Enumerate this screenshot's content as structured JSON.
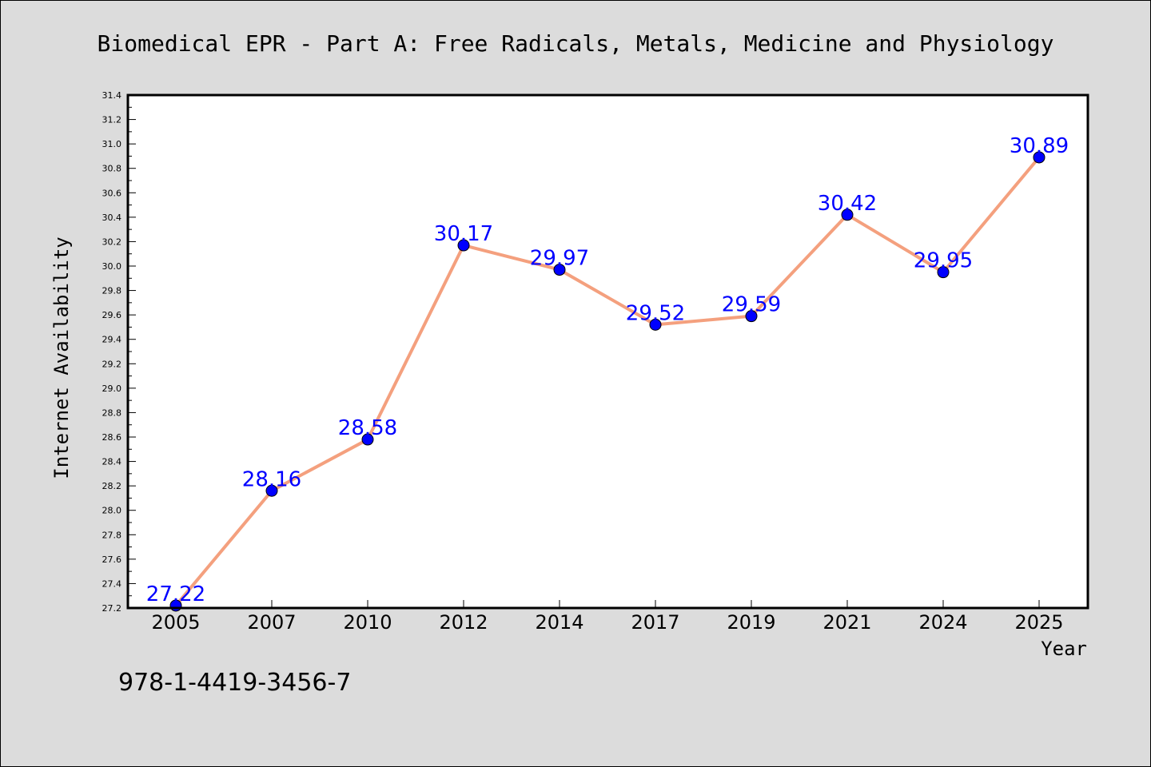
{
  "chart_data": {
    "type": "line",
    "title": "Biomedical EPR - Part A: Free Radicals, Metals, Medicine and Physiology",
    "xlabel": "Year",
    "ylabel": "Internet Availability",
    "categories": [
      "2005",
      "2007",
      "2010",
      "2012",
      "2014",
      "2017",
      "2019",
      "2021",
      "2024",
      "2025"
    ],
    "series": [
      {
        "values": [
          27.22,
          28.16,
          28.58,
          30.17,
          29.97,
          29.52,
          29.59,
          30.42,
          29.95,
          30.89
        ]
      }
    ],
    "ylim": [
      27.2,
      31.4
    ],
    "yticks": [
      27.2,
      27.4,
      27.6,
      27.8,
      28.0,
      28.2,
      28.4,
      28.6,
      28.8,
      29.0,
      29.2,
      29.4,
      29.6,
      29.8,
      30.0,
      30.2,
      30.4,
      30.6,
      30.8,
      31.0,
      31.2,
      31.4
    ],
    "grid": false,
    "data_labels": true,
    "line_color": "#f4a07e",
    "marker_color": "#0000ff",
    "label_color": "#0000ff"
  },
  "isbn": "978-1-4419-3456-7"
}
